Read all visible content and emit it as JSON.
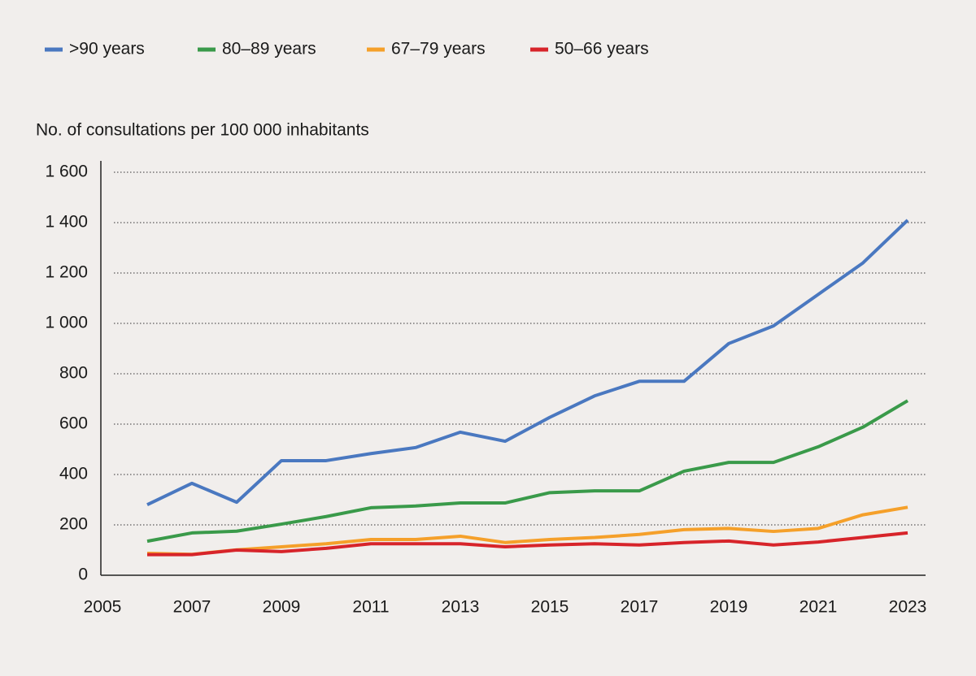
{
  "chart_data": {
    "type": "line",
    "y_axis_label": "No. of consultations per 100 000 inhabitants",
    "x": [
      2006,
      2007,
      2008,
      2009,
      2010,
      2011,
      2012,
      2013,
      2014,
      2015,
      2016,
      2017,
      2018,
      2019,
      2020,
      2021,
      2022,
      2023
    ],
    "series": [
      {
        "name": ">90 years",
        "color": "#4a78c0",
        "values": [
          280,
          365,
          290,
          455,
          455,
          483,
          507,
          568,
          532,
          627,
          712,
          770,
          770,
          920,
          990,
          1115,
          1240,
          1410
        ]
      },
      {
        "name": "80–89 years",
        "color": "#3a9a4a",
        "values": [
          135,
          168,
          175,
          203,
          233,
          268,
          275,
          287,
          287,
          328,
          335,
          335,
          413,
          448,
          448,
          510,
          588,
          693
        ]
      },
      {
        "name": "67–79 years",
        "color": "#f5a02a",
        "values": [
          87,
          83,
          101,
          113,
          125,
          142,
          142,
          155,
          130,
          142,
          150,
          162,
          181,
          186,
          174,
          186,
          240,
          270
        ]
      },
      {
        "name": "50–66 years",
        "color": "#d7242a",
        "values": [
          82,
          82,
          100,
          94,
          107,
          125,
          125,
          125,
          113,
          120,
          125,
          120,
          130,
          136,
          120,
          132,
          150,
          168
        ]
      }
    ],
    "xlim": [
      2005,
      2023
    ],
    "xticks": [
      2005,
      2007,
      2009,
      2011,
      2013,
      2015,
      2017,
      2019,
      2021,
      2023
    ],
    "ylim": [
      0,
      1600
    ],
    "yticks": [
      0,
      200,
      400,
      600,
      800,
      {
        "value": 1000,
        "label": "1 000"
      },
      {
        "value": 1200,
        "label": "1 200"
      },
      {
        "value": 1400,
        "label": "1 400"
      },
      {
        "value": 1600,
        "label": "1 600"
      }
    ],
    "grid": true
  }
}
